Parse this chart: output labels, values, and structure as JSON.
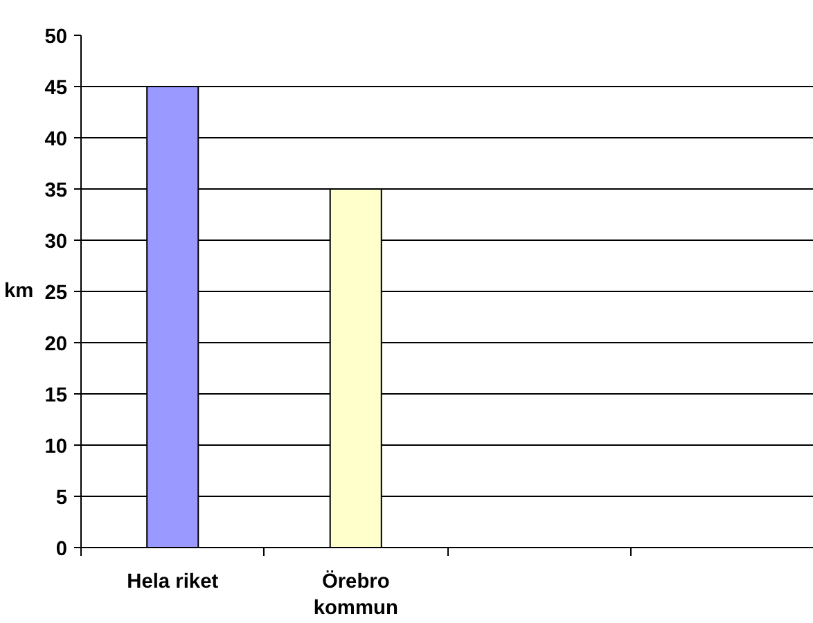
{
  "chart_data": {
    "type": "bar",
    "ylabel": "km",
    "categories": [
      "Hela riket",
      "Örebro kommun",
      null,
      null
    ],
    "values": [
      45,
      35,
      null,
      null
    ],
    "colors": [
      "#9999ff",
      "#ffffcc",
      null,
      null
    ],
    "ylim": [
      0,
      50
    ],
    "yticks": [
      0,
      5,
      10,
      15,
      20,
      25,
      30,
      35,
      40,
      45,
      50
    ],
    "grid": "y"
  }
}
